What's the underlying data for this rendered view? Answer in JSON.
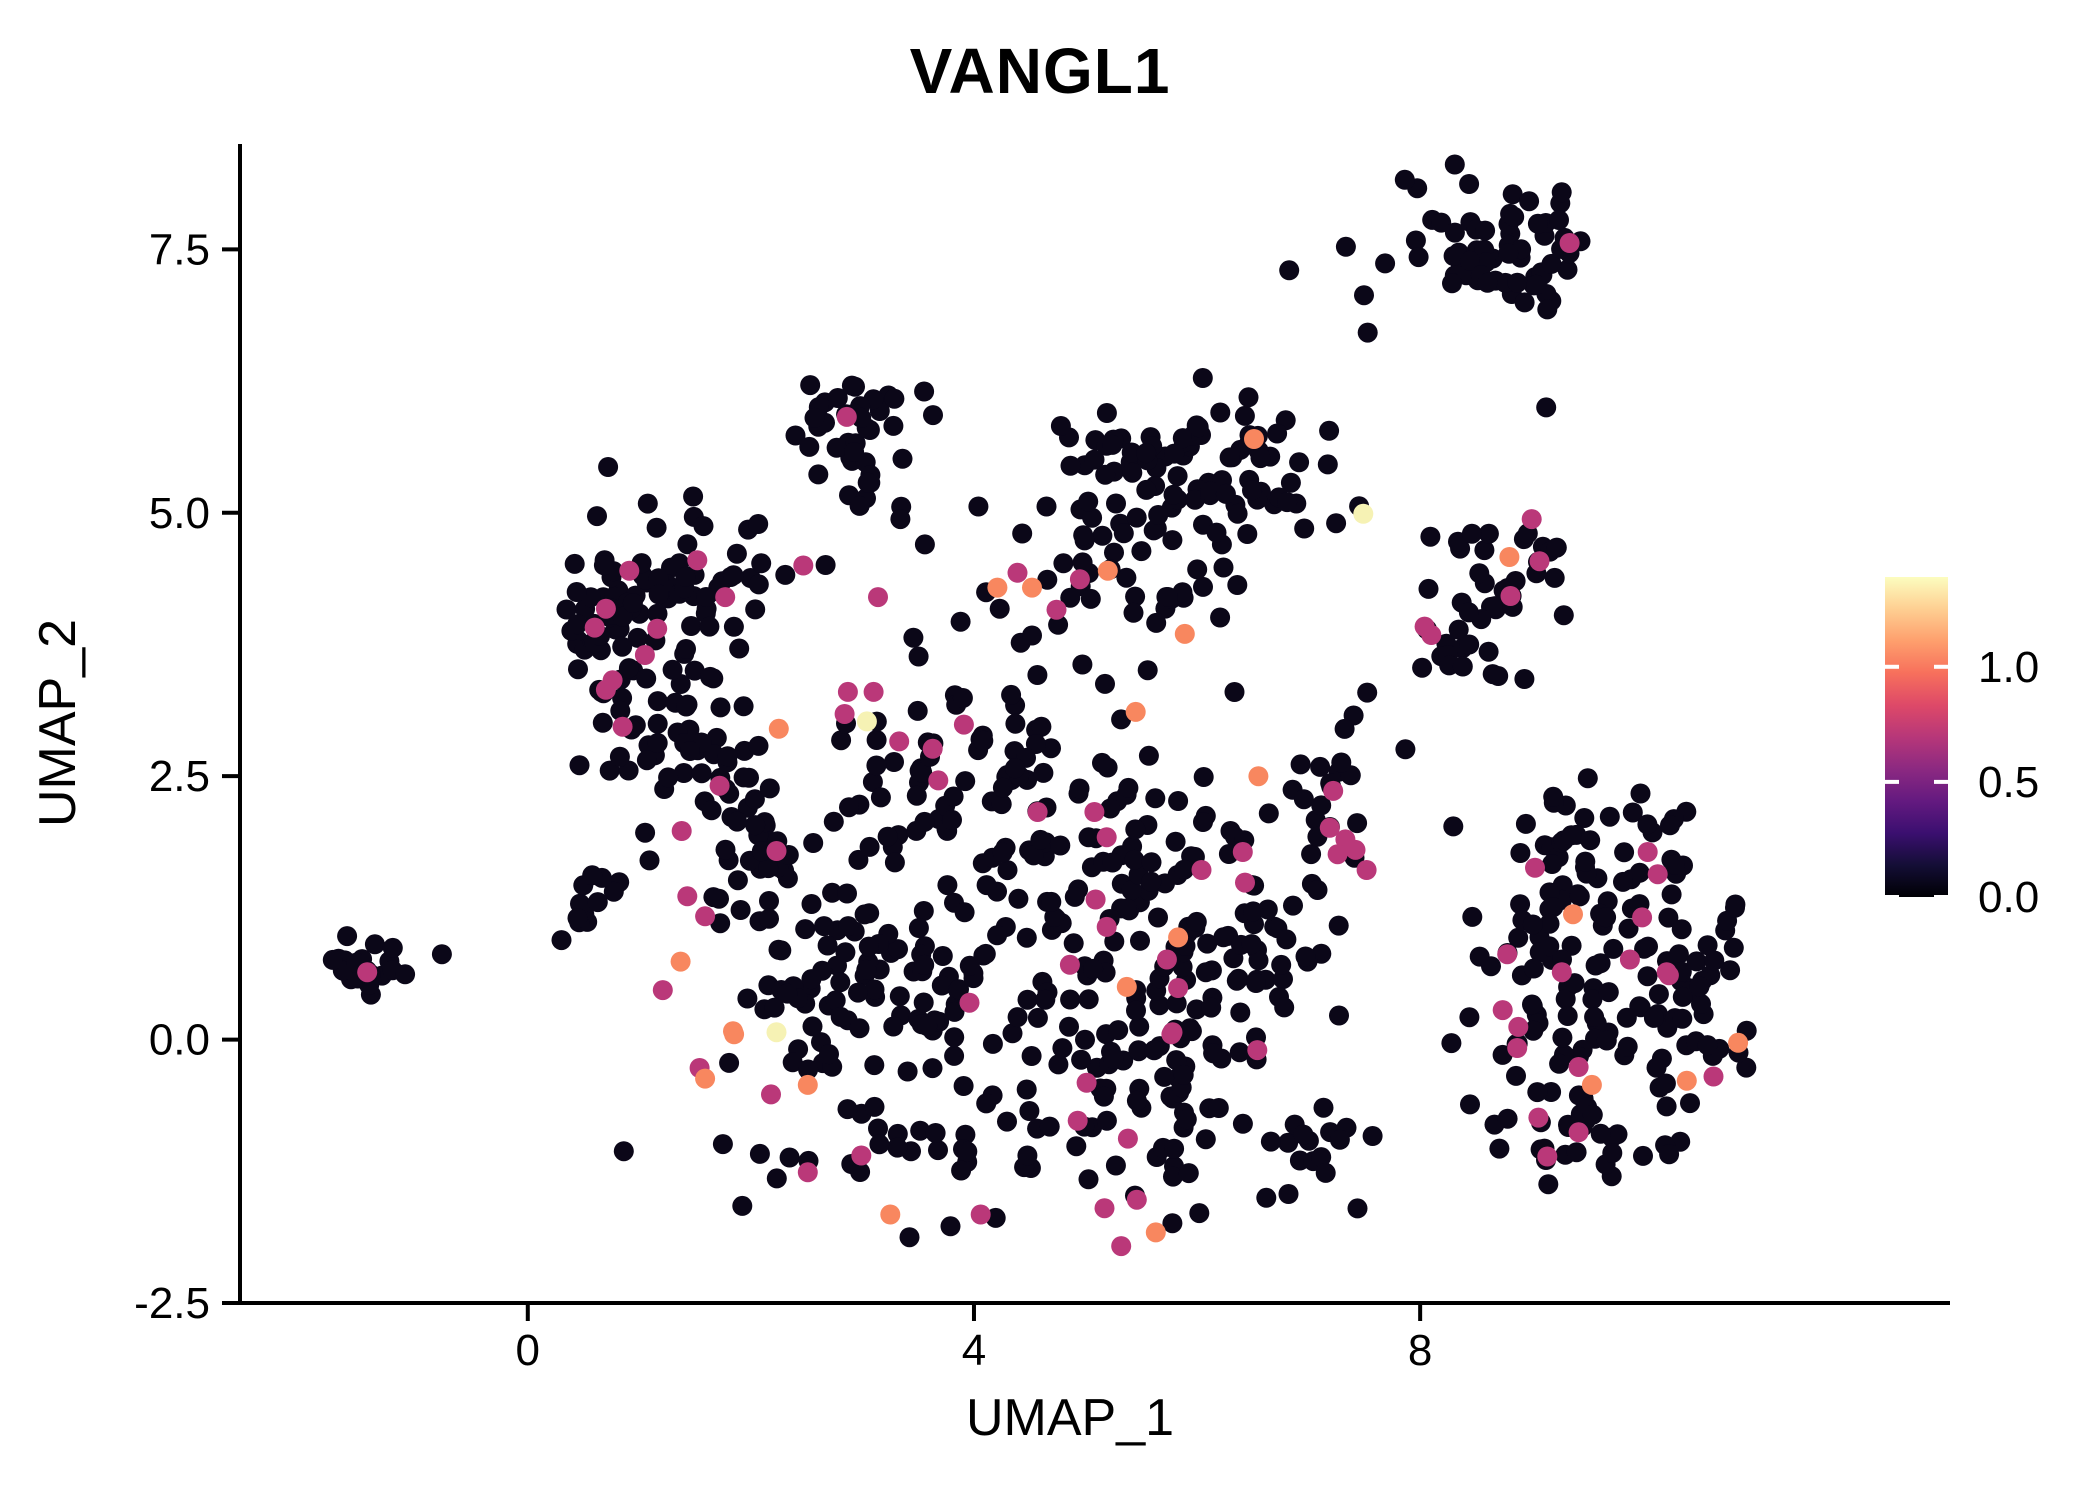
{
  "chart_data": {
    "type": "scatter",
    "title": "VANGL1",
    "xlabel": "UMAP_1",
    "ylabel": "UMAP_2",
    "xlim": [
      -2.58,
      12.75
    ],
    "ylim": [
      -2.5,
      8.5
    ],
    "x_ticks": {
      "values": [
        0,
        4,
        8
      ],
      "labels": [
        "0",
        "4",
        "8"
      ]
    },
    "y_ticks": {
      "values": [
        -2.5,
        0.0,
        2.5,
        5.0,
        7.5
      ],
      "labels": [
        "-2.5",
        "0.0",
        "2.5",
        "5.0",
        "7.5"
      ]
    },
    "grid": false,
    "legend_position": "right",
    "point_radius_px": 10,
    "colors": {
      "low": "#0b0718",
      "mid": "#ba3879",
      "mid_high": "#f8875f",
      "high": "#f6f2b4"
    },
    "colorbar": {
      "tick_values": [
        0.0,
        0.5,
        1.0
      ],
      "tick_labels": [
        "0.0",
        "0.5",
        "1.0"
      ],
      "max_value": 1.39,
      "gradient_low_to_high": [
        "#000004",
        "#140e36",
        "#3b0f70",
        "#641a80",
        "#8c2981",
        "#b73779",
        "#de4968",
        "#f7705c",
        "#fe9f6d",
        "#fecf92",
        "#fcfdbf"
      ]
    },
    "black_clusters": [
      {
        "id": "topright",
        "cx": 8.68,
        "cy": 7.55,
        "sx": 0.52,
        "sy": 0.3,
        "n": 66,
        "seed": 11,
        "by": [
          6.98,
          8.4
        ]
      },
      {
        "id": "midtop",
        "cx": 2.96,
        "cy": 5.68,
        "sx": 0.3,
        "sy": 0.3,
        "n": 40,
        "seed": 12,
        "bx": [
          2.35,
          3.65
        ],
        "by": [
          5.05,
          6.35
        ]
      },
      {
        "id": "uppercenter-a",
        "cx": 5.55,
        "cy": 5.4,
        "sx": 0.45,
        "sy": 0.33,
        "n": 46,
        "seed": 13
      },
      {
        "id": "uppercenter-b",
        "cx": 6.55,
        "cy": 5.3,
        "sx": 0.38,
        "sy": 0.33,
        "n": 38,
        "seed": 14
      },
      {
        "id": "uppercenter-tail",
        "cx": 5.85,
        "cy": 4.3,
        "sx": 0.45,
        "sy": 0.38,
        "n": 28,
        "seed": 15
      },
      {
        "id": "uppercenter-left",
        "cx": 4.95,
        "cy": 4.7,
        "sx": 0.28,
        "sy": 0.28,
        "n": 10,
        "seed": 16
      },
      {
        "id": "left-main",
        "cx": 1.05,
        "cy": 3.95,
        "sx": 0.52,
        "sy": 0.5,
        "n": 95,
        "seed": 17,
        "bx": [
          0.32,
          2.3
        ]
      },
      {
        "id": "left-lower",
        "cx": 1.35,
        "cy": 2.75,
        "sx": 0.42,
        "sy": 0.4,
        "n": 28,
        "seed": 18,
        "bx": [
          0.4,
          2.4
        ]
      },
      {
        "id": "left-arm",
        "cx": 2.05,
        "cy": 4.4,
        "sx": 0.33,
        "sy": 0.24,
        "n": 16,
        "seed": 19
      },
      {
        "id": "farleft",
        "cx": -1.52,
        "cy": 0.66,
        "sx": 0.17,
        "sy": 0.13,
        "n": 17,
        "seed": 20
      },
      {
        "id": "small-left",
        "cx": 0.48,
        "cy": 1.28,
        "sx": 0.2,
        "sy": 0.17,
        "n": 12,
        "seed": 21
      },
      {
        "id": "center-1",
        "cx": 3.8,
        "cy": 2.5,
        "sx": 0.62,
        "sy": 0.52,
        "n": 55,
        "seed": 22
      },
      {
        "id": "center-2",
        "cx": 5.1,
        "cy": 1.8,
        "sx": 0.68,
        "sy": 0.58,
        "n": 70,
        "seed": 23
      },
      {
        "id": "center-3",
        "cx": 3.8,
        "cy": 0.6,
        "sx": 0.72,
        "sy": 0.62,
        "n": 70,
        "seed": 24
      },
      {
        "id": "center-4",
        "cx": 5.6,
        "cy": -0.1,
        "sx": 0.68,
        "sy": 0.58,
        "n": 74,
        "seed": 25
      },
      {
        "id": "center-5",
        "cx": 2.5,
        "cy": 0.9,
        "sx": 0.52,
        "sy": 0.62,
        "n": 50,
        "seed": 26,
        "bx": [
          1.05,
          4.2
        ]
      },
      {
        "id": "center-6",
        "cx": 6.5,
        "cy": 0.9,
        "sx": 0.48,
        "sy": 0.52,
        "n": 44,
        "seed": 27
      },
      {
        "id": "center-bottom",
        "cx": 3.8,
        "cy": -1.1,
        "sx": 0.78,
        "sy": 0.34,
        "n": 40,
        "seed": 28,
        "by": [
          -1.95,
          0.5
        ]
      },
      {
        "id": "center-bottom-right",
        "cx": 6.8,
        "cy": -0.9,
        "sx": 0.44,
        "sy": 0.38,
        "n": 22,
        "seed": 29
      },
      {
        "id": "center-left-bridge",
        "cx": 2.0,
        "cy": 2.0,
        "sx": 0.42,
        "sy": 0.45,
        "n": 28,
        "seed": 30,
        "bx": [
          0.95,
          3.1
        ]
      },
      {
        "id": "center-top-bridge",
        "cx": 4.4,
        "cy": 3.6,
        "sx": 0.45,
        "sy": 0.3,
        "n": 15,
        "seed": 31
      },
      {
        "id": "center-right-bridge",
        "cx": 7.25,
        "cy": 2.6,
        "sx": 0.33,
        "sy": 0.4,
        "n": 15,
        "seed": 32
      },
      {
        "id": "center-right-sparse",
        "cx": 7.0,
        "cy": 1.6,
        "sx": 0.35,
        "sy": 0.5,
        "n": 10,
        "seed": 33
      },
      {
        "id": "rightmid",
        "cx": 8.72,
        "cy": 4.25,
        "sx": 0.33,
        "sy": 0.36,
        "n": 36,
        "seed": 34,
        "bx": [
          8.05,
          9.35
        ]
      },
      {
        "id": "rightmid-tail",
        "cx": 8.36,
        "cy": 3.5,
        "sx": 0.18,
        "sy": 0.13,
        "n": 8,
        "seed": 35
      },
      {
        "id": "right-main",
        "cx": 9.55,
        "cy": 0.7,
        "sx": 0.7,
        "sy": 0.7,
        "n": 118,
        "seed": 36,
        "bx": [
          8.2,
          11.0
        ],
        "by": [
          -1.3,
          2.3
        ]
      },
      {
        "id": "right-top-arm",
        "cx": 9.6,
        "cy": 1.9,
        "sx": 0.42,
        "sy": 0.25,
        "n": 24,
        "seed": 37
      },
      {
        "id": "right-right-arm",
        "cx": 10.45,
        "cy": 0.1,
        "sx": 0.3,
        "sy": 0.33,
        "n": 18,
        "seed": 38
      },
      {
        "id": "right-bottom",
        "cx": 9.3,
        "cy": -0.9,
        "sx": 0.42,
        "sy": 0.28,
        "n": 24,
        "seed": 39
      }
    ],
    "black_singles": [
      [
        7.53,
        6.71
      ],
      [
        9.14,
        6.93
      ],
      [
        9.13,
        6.0
      ],
      [
        4.04,
        5.06
      ],
      [
        4.65,
        5.06
      ],
      [
        -1.21,
        0.87
      ],
      [
        -1.1,
        0.62
      ],
      [
        -0.77,
        0.81
      ],
      [
        3.34,
        4.94
      ],
      [
        3.56,
        4.7
      ]
    ],
    "expressing_points": [
      [
        9.34,
        7.56,
        0.6
      ],
      [
        2.86,
        5.91,
        0.6
      ],
      [
        2.47,
        4.5,
        0.6
      ],
      [
        3.14,
        4.2,
        0.6
      ],
      [
        4.39,
        4.43,
        0.6
      ],
      [
        4.74,
        4.08,
        0.6
      ],
      [
        4.95,
        4.37,
        0.6
      ],
      [
        0.91,
        4.45,
        0.6
      ],
      [
        1.52,
        4.55,
        0.6
      ],
      [
        1.77,
        4.2,
        0.6
      ],
      [
        0.7,
        4.09,
        0.6
      ],
      [
        0.6,
        3.91,
        0.6
      ],
      [
        1.16,
        3.9,
        0.6
      ],
      [
        1.05,
        3.65,
        0.6
      ],
      [
        0.76,
        3.41,
        0.6
      ],
      [
        0.7,
        3.32,
        0.6
      ],
      [
        0.85,
        2.97,
        0.6
      ],
      [
        1.72,
        2.41,
        0.6
      ],
      [
        1.38,
        1.98,
        0.6
      ],
      [
        2.23,
        1.79,
        0.6
      ],
      [
        2.87,
        3.3,
        0.6
      ],
      [
        3.1,
        3.3,
        0.6
      ],
      [
        2.84,
        3.09,
        0.6
      ],
      [
        3.33,
        2.83,
        0.6
      ],
      [
        3.63,
        2.76,
        0.6
      ],
      [
        3.68,
        2.46,
        0.6
      ],
      [
        4.57,
        2.16,
        0.6
      ],
      [
        5.08,
        2.16,
        0.6
      ],
      [
        5.19,
        1.92,
        0.6
      ],
      [
        6.41,
        1.78,
        0.6
      ],
      [
        6.43,
        1.49,
        0.6
      ],
      [
        6.04,
        1.61,
        0.6
      ],
      [
        5.09,
        1.33,
        0.6
      ],
      [
        5.19,
        1.07,
        0.6
      ],
      [
        5.73,
        0.76,
        0.6
      ],
      [
        4.86,
        0.71,
        0.6
      ],
      [
        5.83,
        0.49,
        0.6
      ],
      [
        5.78,
        0.07,
        0.6
      ],
      [
        3.91,
        2.99,
        0.6
      ],
      [
        3.96,
        0.35,
        0.6
      ],
      [
        7.22,
        2.36,
        0.6
      ],
      [
        7.19,
        2.01,
        0.6
      ],
      [
        7.33,
        1.9,
        0.6
      ],
      [
        7.26,
        1.76,
        0.6
      ],
      [
        7.42,
        1.8,
        0.6
      ],
      [
        7.52,
        1.61,
        0.6
      ],
      [
        9.0,
        4.94,
        0.6
      ],
      [
        9.07,
        4.54,
        0.6
      ],
      [
        8.81,
        4.21,
        0.6
      ],
      [
        8.04,
        3.92,
        0.6
      ],
      [
        8.1,
        3.84,
        0.6
      ],
      [
        -1.44,
        0.64,
        0.6
      ],
      [
        1.43,
        1.36,
        0.6
      ],
      [
        1.59,
        1.17,
        0.6
      ],
      [
        1.21,
        0.47,
        0.6
      ],
      [
        1.54,
        -0.27,
        0.6
      ],
      [
        2.18,
        -0.52,
        0.6
      ],
      [
        2.99,
        -1.1,
        0.6
      ],
      [
        2.51,
        -1.26,
        0.6
      ],
      [
        4.06,
        -1.66,
        0.6
      ],
      [
        5.01,
        -0.41,
        0.6
      ],
      [
        4.93,
        -0.77,
        0.6
      ],
      [
        5.38,
        -0.94,
        0.6
      ],
      [
        5.17,
        -1.6,
        0.6
      ],
      [
        5.46,
        -1.52,
        0.6
      ],
      [
        5.32,
        -1.96,
        0.6
      ],
      [
        5.77,
        0.05,
        0.6
      ],
      [
        6.54,
        -0.1,
        0.6
      ],
      [
        9.03,
        1.63,
        0.6
      ],
      [
        10.04,
        1.78,
        0.6
      ],
      [
        10.13,
        1.57,
        0.6
      ],
      [
        9.99,
        1.16,
        0.6
      ],
      [
        8.78,
        0.81,
        0.6
      ],
      [
        9.27,
        0.64,
        0.6
      ],
      [
        9.88,
        0.76,
        0.6
      ],
      [
        10.21,
        0.64,
        0.6
      ],
      [
        8.74,
        0.28,
        0.6
      ],
      [
        8.88,
        0.12,
        0.6
      ],
      [
        8.87,
        -0.08,
        0.6
      ],
      [
        9.42,
        -0.26,
        0.6
      ],
      [
        10.63,
        -0.35,
        0.6
      ],
      [
        9.06,
        -0.74,
        0.6
      ],
      [
        9.42,
        -0.88,
        0.6
      ],
      [
        9.14,
        -1.11,
        0.6
      ],
      [
        10.23,
        0.61,
        0.6
      ],
      [
        4.21,
        4.29,
        1.0
      ],
      [
        4.52,
        4.29,
        1.0
      ],
      [
        5.2,
        4.45,
        1.0
      ],
      [
        5.45,
        3.11,
        1.0
      ],
      [
        6.55,
        2.5,
        1.0
      ],
      [
        5.83,
        0.97,
        1.0
      ],
      [
        5.37,
        0.5,
        1.0
      ],
      [
        2.25,
        2.95,
        1.0
      ],
      [
        6.51,
        5.7,
        1.0
      ],
      [
        5.89,
        3.85,
        1.0
      ],
      [
        8.8,
        4.58,
        1.0
      ],
      [
        9.37,
        1.19,
        1.0
      ],
      [
        10.85,
        -0.03,
        1.0
      ],
      [
        10.39,
        -0.39,
        1.0
      ],
      [
        9.54,
        -0.43,
        1.0
      ],
      [
        1.85,
        0.05,
        1.0
      ],
      [
        1.59,
        -0.37,
        1.0
      ],
      [
        2.51,
        -0.43,
        1.0
      ],
      [
        3.25,
        -1.66,
        1.0
      ],
      [
        5.63,
        -1.83,
        1.0
      ],
      [
        1.37,
        0.74,
        1.0
      ],
      [
        1.84,
        0.08,
        1.0
      ],
      [
        7.49,
        4.99,
        1.35
      ],
      [
        3.04,
        3.02,
        1.35
      ],
      [
        2.23,
        0.07,
        1.35
      ]
    ]
  }
}
